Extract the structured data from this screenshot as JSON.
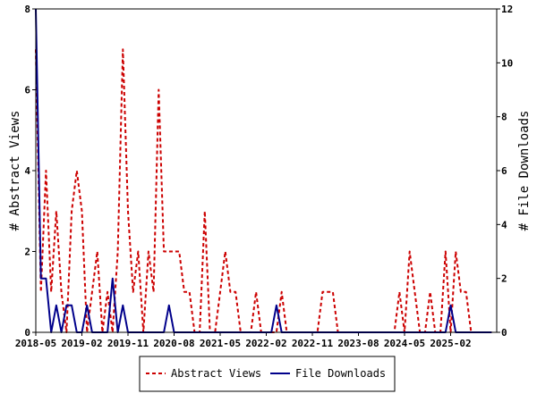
{
  "chart_data": {
    "type": "line",
    "title": "",
    "xlabel": "",
    "ylabel_left": "# Abstract Views",
    "ylabel_right": "# File Downloads",
    "ylim_left": [
      0,
      8
    ],
    "ylim_right": [
      0,
      12
    ],
    "yticks_left": [
      "0",
      "2",
      "4",
      "6",
      "8"
    ],
    "yticks_right": [
      "0",
      "2",
      "4",
      "6",
      "8",
      "10",
      "12"
    ],
    "x_range": [
      "2018-05",
      "2025-11"
    ],
    "xticks": [
      "2018-05",
      "2019-02",
      "2019-11",
      "2020-08",
      "2021-05",
      "2022-02",
      "2022-11",
      "2023-08",
      "2024-05",
      "2025-02"
    ],
    "grid": false,
    "legend_position": "bottom",
    "series": [
      {
        "name": "Abstract Views",
        "axis": "left",
        "color": "#cc0000",
        "style": "dashed",
        "x": [
          "2018-05",
          "2018-06",
          "2018-07",
          "2018-08",
          "2018-09",
          "2018-10",
          "2018-11",
          "2018-12",
          "2019-01",
          "2019-02",
          "2019-03",
          "2019-04",
          "2019-05",
          "2019-06",
          "2019-07",
          "2019-08",
          "2019-09",
          "2019-10",
          "2019-11",
          "2019-12",
          "2020-01",
          "2020-02",
          "2020-03",
          "2020-04",
          "2020-05",
          "2020-06",
          "2020-07",
          "2020-08",
          "2020-09",
          "2020-10",
          "2020-11",
          "2020-12",
          "2021-01",
          "2021-02",
          "2021-03",
          "2021-04",
          "2021-05",
          "2021-06",
          "2021-07",
          "2021-08",
          "2021-09",
          "2021-10",
          "2021-11",
          "2021-12",
          "2022-01",
          "2022-02",
          "2022-03",
          "2022-04",
          "2022-05",
          "2022-06",
          "2022-07",
          "2022-08",
          "2022-09",
          "2022-10",
          "2022-11",
          "2022-12",
          "2023-01",
          "2023-02",
          "2023-03",
          "2023-04",
          "2023-05",
          "2023-06",
          "2023-07",
          "2023-08",
          "2023-09",
          "2023-10",
          "2023-11",
          "2023-12",
          "2024-01",
          "2024-02",
          "2024-03",
          "2024-04",
          "2024-05",
          "2024-06",
          "2024-07",
          "2024-08",
          "2024-09",
          "2024-10",
          "2024-11",
          "2024-12",
          "2025-01",
          "2025-02",
          "2025-03",
          "2025-04",
          "2025-05",
          "2025-06",
          "2025-07",
          "2025-08",
          "2025-09",
          "2025-10"
        ],
        "values": [
          7,
          1,
          4,
          1,
          3,
          1,
          0,
          3,
          4,
          3,
          0,
          1,
          2,
          0,
          1,
          0,
          2,
          7,
          3,
          1,
          2,
          0,
          2,
          1,
          6,
          2,
          2,
          2,
          2,
          1,
          1,
          0,
          0,
          3,
          0,
          0,
          1,
          2,
          1,
          1,
          0,
          0,
          0,
          1,
          0,
          0,
          0,
          0,
          1,
          0,
          0,
          0,
          0,
          0,
          0,
          0,
          1,
          1,
          1,
          0,
          0,
          0,
          0,
          0,
          0,
          0,
          0,
          0,
          0,
          0,
          0,
          1,
          0,
          2,
          1,
          0,
          0,
          1,
          0,
          0,
          2,
          0,
          2,
          1,
          1,
          0,
          0,
          0,
          0,
          0
        ]
      },
      {
        "name": "File Downloads",
        "axis": "right",
        "color": "#00008b",
        "style": "solid",
        "x": [
          "2018-05",
          "2018-06",
          "2018-07",
          "2018-08",
          "2018-09",
          "2018-10",
          "2018-11",
          "2018-12",
          "2019-01",
          "2019-02",
          "2019-03",
          "2019-04",
          "2019-05",
          "2019-06",
          "2019-07",
          "2019-08",
          "2019-09",
          "2019-10",
          "2019-11",
          "2019-12",
          "2020-01",
          "2020-02",
          "2020-03",
          "2020-04",
          "2020-05",
          "2020-06",
          "2020-07",
          "2020-08",
          "2020-09",
          "2020-10",
          "2020-11",
          "2020-12",
          "2021-01",
          "2021-02",
          "2021-03",
          "2021-04",
          "2021-05",
          "2021-06",
          "2021-07",
          "2021-08",
          "2021-09",
          "2021-10",
          "2021-11",
          "2021-12",
          "2022-01",
          "2022-02",
          "2022-03",
          "2022-04",
          "2022-05",
          "2022-06",
          "2022-07",
          "2022-08",
          "2022-09",
          "2022-10",
          "2022-11",
          "2022-12",
          "2023-01",
          "2023-02",
          "2023-03",
          "2023-04",
          "2023-05",
          "2023-06",
          "2023-07",
          "2023-08",
          "2023-09",
          "2023-10",
          "2023-11",
          "2023-12",
          "2024-01",
          "2024-02",
          "2024-03",
          "2024-04",
          "2024-05",
          "2024-06",
          "2024-07",
          "2024-08",
          "2024-09",
          "2024-10",
          "2024-11",
          "2024-12",
          "2025-01",
          "2025-02",
          "2025-03",
          "2025-04",
          "2025-05",
          "2025-06",
          "2025-07",
          "2025-08",
          "2025-09",
          "2025-10"
        ],
        "values": [
          12,
          2,
          2,
          0,
          1,
          0,
          1,
          1,
          0,
          0,
          1,
          0,
          0,
          0,
          0,
          2,
          0,
          1,
          0,
          0,
          0,
          0,
          0,
          0,
          0,
          0,
          1,
          0,
          0,
          0,
          0,
          0,
          0,
          0,
          0,
          0,
          0,
          0,
          0,
          0,
          0,
          0,
          0,
          0,
          0,
          0,
          0,
          1,
          0,
          0,
          0,
          0,
          0,
          0,
          0,
          0,
          0,
          0,
          0,
          0,
          0,
          0,
          0,
          0,
          0,
          0,
          0,
          0,
          0,
          0,
          0,
          0,
          0,
          0,
          0,
          0,
          0,
          0,
          0,
          0,
          0,
          1,
          0,
          0,
          0,
          0,
          0,
          0,
          0,
          0
        ]
      }
    ]
  }
}
